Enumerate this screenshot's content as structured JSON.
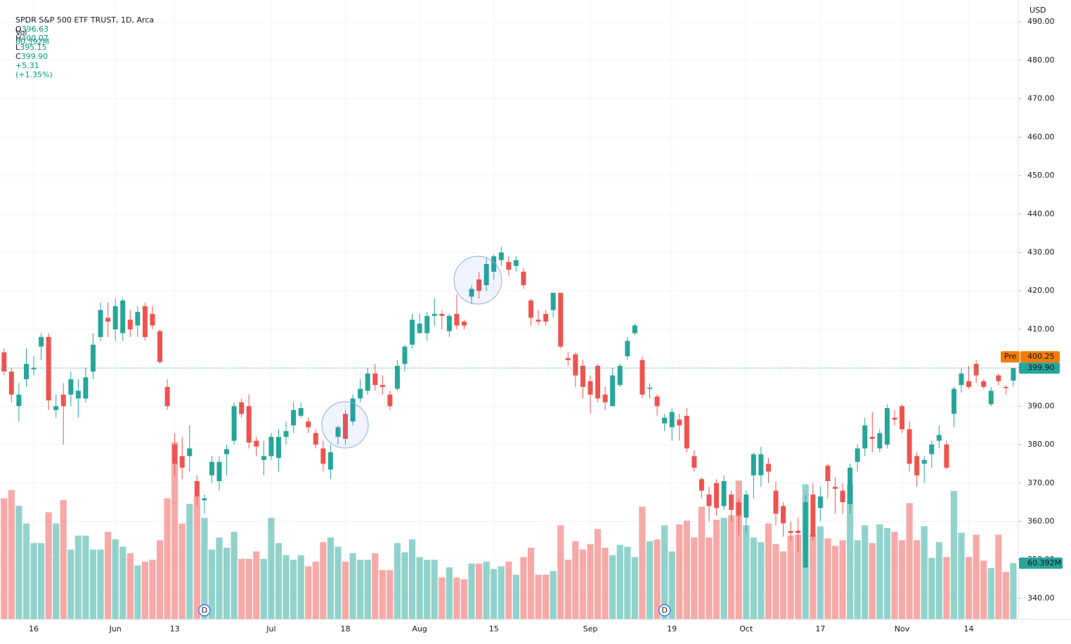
{
  "chart_data": {
    "type": "candlestick",
    "legend": {
      "title": "SPDR S&P 500 ETF TRUST, 1D, Arca",
      "fields": [
        {
          "key": "O",
          "value": 396.63
        },
        {
          "key": "H",
          "value": 400.07
        },
        {
          "key": "L",
          "value": 395.15
        },
        {
          "key": "C",
          "value": 399.9,
          "label": "399.90"
        }
      ],
      "change": {
        "value": 5.31,
        "label": "+5.31"
      },
      "change_pct": {
        "value": 1.35,
        "label": "(+1.35%)"
      },
      "volume_title": "Vol",
      "volume": {
        "value": 60.392,
        "label": "60.392M"
      }
    },
    "currency": "USD",
    "pre_market": {
      "label": "Pre",
      "value": 400.25
    },
    "up_color": "#26a69a",
    "down_color": "#ef5350",
    "grid": true,
    "ylim": [
      334.5,
      495.7
    ],
    "yticks": [
      {
        "value": 340,
        "label": "340.00"
      },
      {
        "value": 350,
        "label": "350.00"
      },
      {
        "value": 360,
        "label": "360.00"
      },
      {
        "value": 370,
        "label": "370.00"
      },
      {
        "value": 380,
        "label": "380.00"
      },
      {
        "value": 390,
        "label": "390.00"
      },
      {
        "value": 400,
        "label": "400.00"
      },
      {
        "value": 410,
        "label": "410.00"
      },
      {
        "value": 420,
        "label": "420.00"
      },
      {
        "value": 430,
        "label": "430.00"
      },
      {
        "value": 440,
        "label": "440.00"
      },
      {
        "value": 450,
        "label": "450.00"
      },
      {
        "value": 460,
        "label": "460.00"
      },
      {
        "value": 470,
        "label": "470.00"
      },
      {
        "value": 480,
        "label": "480.00"
      },
      {
        "value": 490,
        "label": "490.00"
      }
    ],
    "categories": [
      null,
      null,
      null,
      null,
      "16",
      null,
      null,
      null,
      null,
      null,
      null,
      null,
      null,
      null,
      null,
      "Jun",
      null,
      null,
      null,
      null,
      null,
      null,
      null,
      "13",
      null,
      null,
      null,
      null,
      null,
      null,
      null,
      null,
      null,
      null,
      null,
      null,
      "Jul",
      null,
      null,
      null,
      null,
      null,
      null,
      null,
      null,
      null,
      "18",
      null,
      null,
      null,
      null,
      null,
      null,
      null,
      null,
      null,
      "Aug",
      null,
      null,
      null,
      null,
      null,
      null,
      null,
      null,
      null,
      "15",
      null,
      null,
      null,
      null,
      null,
      null,
      null,
      null,
      null,
      null,
      null,
      null,
      "Sep",
      null,
      null,
      null,
      null,
      null,
      null,
      null,
      null,
      null,
      null,
      "19",
      null,
      null,
      null,
      null,
      null,
      null,
      null,
      null,
      null,
      "Oct",
      null,
      null,
      null,
      null,
      null,
      null,
      null,
      null,
      null,
      "17",
      null,
      null,
      null,
      null,
      null,
      null,
      null,
      null,
      null,
      null,
      "Nov",
      null,
      null,
      null,
      null,
      null,
      null,
      null,
      null,
      "14",
      null,
      null,
      null,
      null,
      null,
      null
    ],
    "open": [
      404,
      399,
      390,
      397,
      399.6,
      405.5,
      408,
      389,
      393,
      393,
      392,
      392,
      399,
      408,
      413,
      410,
      409,
      412.5,
      411,
      416,
      414,
      409.5,
      395,
      380,
      377,
      377,
      370.5,
      365.5,
      372,
      370.5,
      377.5,
      381,
      391,
      390,
      381,
      376,
      377,
      376.5,
      382,
      385,
      387.5,
      386,
      383,
      379,
      373.5,
      382,
      388,
      386,
      392,
      394,
      398.5,
      395.5,
      393,
      394.5,
      401,
      406,
      409,
      409,
      413.5,
      414,
      409.5,
      414,
      412,
      418.5,
      423,
      421.5,
      425,
      428,
      427.5,
      426.5,
      425,
      417.5,
      412.5,
      414,
      415,
      419.5,
      402.5,
      403.5,
      400.5,
      396.5,
      400.5,
      393,
      390,
      395.5,
      403,
      409,
      402,
      394.5,
      392.5,
      385.5,
      384.5,
      386.5,
      387.5,
      377,
      371,
      367,
      370,
      364,
      367,
      365,
      361,
      372,
      372,
      375,
      368,
      364,
      357.5,
      357.6,
      348,
      367,
      363.5,
      374.5,
      369,
      368,
      364.5,
      375.5,
      379,
      382,
      379,
      380,
      387,
      390,
      384,
      377,
      375,
      377.5,
      381,
      380,
      388,
      395.5,
      396.5,
      401,
      396.5,
      390.5,
      398,
      395,
      396.63
    ],
    "high": [
      405,
      400,
      396,
      405,
      403,
      409,
      409,
      393,
      396,
      399,
      397,
      400,
      409,
      417,
      417,
      418,
      418,
      415,
      416,
      417,
      416,
      410,
      397,
      383,
      382,
      385,
      372,
      367,
      377,
      377,
      380,
      391,
      392,
      393,
      382,
      381,
      383,
      384,
      386,
      391,
      391,
      387,
      384,
      381,
      380,
      385,
      389,
      393,
      397,
      400,
      401,
      398,
      394,
      402,
      406,
      414,
      414,
      414.5,
      418,
      415,
      414,
      419,
      412.5,
      421.5,
      425,
      428.5,
      429.5,
      431.5,
      429,
      429,
      426,
      418,
      415,
      415,
      419.5,
      419.5,
      404,
      404,
      402,
      398,
      401,
      395,
      400,
      401,
      408,
      411.5,
      403,
      396,
      393,
      388,
      389.5,
      388,
      389.5,
      378.5,
      371.5,
      369,
      371,
      372,
      368,
      366,
      368,
      378,
      379.5,
      376.5,
      370.5,
      365,
      360,
      361,
      367,
      370,
      369,
      375,
      371.5,
      370,
      375,
      380,
      387,
      388.5,
      384,
      390.5,
      389,
      390.5,
      386,
      378,
      377,
      381,
      385,
      381,
      395,
      400,
      400.5,
      402,
      397,
      395,
      398.5,
      395.5,
      400.07
    ],
    "low": [
      398,
      391,
      386,
      395,
      398,
      402,
      389,
      387,
      380,
      390,
      387,
      391,
      397,
      407,
      408,
      407,
      407,
      408,
      408,
      407,
      410,
      401,
      389,
      372,
      371,
      373,
      364,
      362,
      370,
      368,
      372,
      380,
      387,
      379,
      377,
      372,
      376,
      373,
      380,
      383,
      387,
      383,
      379,
      373,
      371,
      380,
      380,
      385,
      391,
      393,
      394,
      393,
      389,
      394,
      399,
      405,
      409,
      407,
      411,
      410,
      408,
      410,
      410,
      416.5,
      418,
      420,
      423,
      426.5,
      424,
      425,
      420.5,
      411,
      411,
      411,
      413,
      405,
      400.5,
      395,
      392,
      388,
      391,
      389,
      390,
      395,
      402,
      408.5,
      392,
      392,
      387.5,
      383.5,
      381,
      381,
      378,
      373,
      366,
      360,
      361.5,
      363,
      360,
      356.5,
      357,
      366,
      369,
      370,
      359,
      356,
      355,
      352,
      348,
      355,
      360,
      366,
      362,
      362,
      362,
      373,
      377,
      378,
      378,
      379,
      385,
      383,
      373,
      369,
      370,
      374,
      379,
      373.5,
      384.5,
      393.5,
      394.5,
      396,
      394.5,
      390,
      395.5,
      393,
      395.15
    ],
    "close": [
      399,
      393,
      393,
      401,
      400,
      408,
      391.5,
      390,
      390,
      397,
      394,
      397.5,
      406,
      415,
      412,
      416,
      417.5,
      410,
      414.5,
      408,
      411,
      401.5,
      390,
      375,
      374,
      379,
      366.5,
      366,
      375.5,
      375.5,
      378.8,
      390,
      388,
      380.5,
      379.5,
      377,
      382,
      382,
      383.5,
      389,
      389.5,
      384.5,
      380,
      375,
      378,
      384.5,
      381.5,
      392,
      394.5,
      398.5,
      395.5,
      395,
      390,
      400.5,
      405.5,
      412.5,
      411.5,
      413.5,
      414,
      413.5,
      413.5,
      411,
      411,
      420.5,
      420,
      427,
      429,
      430,
      425.5,
      428,
      421.5,
      413,
      412,
      412,
      419.5,
      405.5,
      402,
      398,
      395,
      393,
      392,
      391,
      398,
      400.5,
      407,
      411,
      393,
      394.8,
      390,
      387,
      388.5,
      385,
      379,
      374,
      368,
      364,
      363.5,
      370.5,
      363,
      361.5,
      367,
      377.5,
      377.5,
      373,
      362,
      359.5,
      357,
      357,
      365,
      356,
      366.5,
      370.5,
      368.5,
      365,
      374,
      379,
      385,
      381.5,
      383,
      389.5,
      386.5,
      384,
      375,
      372,
      376,
      380,
      382.5,
      374,
      394.5,
      398.5,
      395,
      398,
      395,
      394,
      396.5,
      394.7,
      399.9
    ],
    "volume": [
      130,
      139,
      122,
      103,
      82,
      82,
      115,
      103,
      128,
      75,
      90,
      90,
      75,
      75,
      94,
      86,
      78,
      71,
      58,
      62,
      64,
      85,
      130,
      190,
      103,
      124,
      132,
      109,
      75,
      88,
      77,
      94,
      65,
      65,
      73,
      65,
      109,
      82,
      69,
      64,
      69,
      57,
      62,
      83,
      88,
      78,
      62,
      71,
      64,
      64,
      71,
      53,
      53,
      82,
      72,
      86,
      67,
      64,
      64,
      45,
      56,
      45,
      43,
      60,
      60,
      62,
      54,
      57,
      62,
      48,
      67,
      77,
      48,
      48,
      52,
      101,
      64,
      84,
      75,
      81,
      97,
      77,
      69,
      80,
      78,
      67,
      121,
      84,
      86,
      101,
      73,
      102,
      106,
      88,
      121,
      88,
      107,
      109,
      112,
      149,
      101,
      88,
      83,
      103,
      81,
      73,
      90,
      91,
      145,
      92,
      100,
      87,
      79,
      85,
      145,
      85,
      101,
      82,
      102,
      98,
      94,
      85,
      125,
      85,
      100,
      66,
      83,
      67,
      138,
      93,
      67,
      91,
      63,
      55,
      91,
      51,
      60.392
    ],
    "dividends": [
      {
        "index": 27,
        "label": "D"
      },
      {
        "index": 89,
        "label": "D"
      }
    ]
  }
}
